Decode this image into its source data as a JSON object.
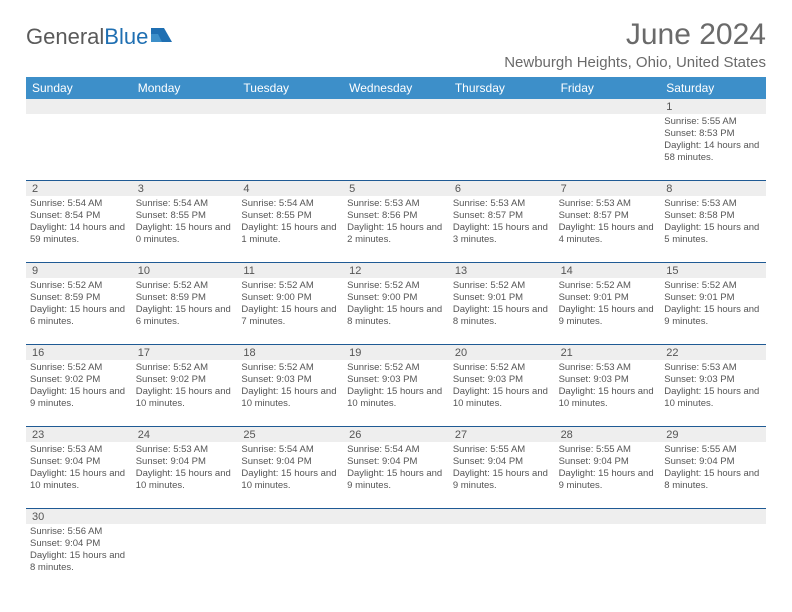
{
  "logo": {
    "text1": "General",
    "text2": "Blue"
  },
  "title": "June 2024",
  "location": "Newburgh Heights, Ohio, United States",
  "colors": {
    "header_bg": "#3d8fc9",
    "header_text": "#ffffff",
    "row_border": "#1f5a94",
    "daynum_bg": "#eeeeee",
    "text": "#555555",
    "logo_gray": "#5a5a5a",
    "logo_blue": "#1f6fb2"
  },
  "day_names": [
    "Sunday",
    "Monday",
    "Tuesday",
    "Wednesday",
    "Thursday",
    "Friday",
    "Saturday"
  ],
  "weeks": [
    {
      "nums": [
        "",
        "",
        "",
        "",
        "",
        "",
        "1"
      ],
      "cells": [
        null,
        null,
        null,
        null,
        null,
        null,
        {
          "sunrise": "5:55 AM",
          "sunset": "8:53 PM",
          "daylight": "14 hours and 58 minutes."
        }
      ]
    },
    {
      "nums": [
        "2",
        "3",
        "4",
        "5",
        "6",
        "7",
        "8"
      ],
      "cells": [
        {
          "sunrise": "5:54 AM",
          "sunset": "8:54 PM",
          "daylight": "14 hours and 59 minutes."
        },
        {
          "sunrise": "5:54 AM",
          "sunset": "8:55 PM",
          "daylight": "15 hours and 0 minutes."
        },
        {
          "sunrise": "5:54 AM",
          "sunset": "8:55 PM",
          "daylight": "15 hours and 1 minute."
        },
        {
          "sunrise": "5:53 AM",
          "sunset": "8:56 PM",
          "daylight": "15 hours and 2 minutes."
        },
        {
          "sunrise": "5:53 AM",
          "sunset": "8:57 PM",
          "daylight": "15 hours and 3 minutes."
        },
        {
          "sunrise": "5:53 AM",
          "sunset": "8:57 PM",
          "daylight": "15 hours and 4 minutes."
        },
        {
          "sunrise": "5:53 AM",
          "sunset": "8:58 PM",
          "daylight": "15 hours and 5 minutes."
        }
      ]
    },
    {
      "nums": [
        "9",
        "10",
        "11",
        "12",
        "13",
        "14",
        "15"
      ],
      "cells": [
        {
          "sunrise": "5:52 AM",
          "sunset": "8:59 PM",
          "daylight": "15 hours and 6 minutes."
        },
        {
          "sunrise": "5:52 AM",
          "sunset": "8:59 PM",
          "daylight": "15 hours and 6 minutes."
        },
        {
          "sunrise": "5:52 AM",
          "sunset": "9:00 PM",
          "daylight": "15 hours and 7 minutes."
        },
        {
          "sunrise": "5:52 AM",
          "sunset": "9:00 PM",
          "daylight": "15 hours and 8 minutes."
        },
        {
          "sunrise": "5:52 AM",
          "sunset": "9:01 PM",
          "daylight": "15 hours and 8 minutes."
        },
        {
          "sunrise": "5:52 AM",
          "sunset": "9:01 PM",
          "daylight": "15 hours and 9 minutes."
        },
        {
          "sunrise": "5:52 AM",
          "sunset": "9:01 PM",
          "daylight": "15 hours and 9 minutes."
        }
      ]
    },
    {
      "nums": [
        "16",
        "17",
        "18",
        "19",
        "20",
        "21",
        "22"
      ],
      "cells": [
        {
          "sunrise": "5:52 AM",
          "sunset": "9:02 PM",
          "daylight": "15 hours and 9 minutes."
        },
        {
          "sunrise": "5:52 AM",
          "sunset": "9:02 PM",
          "daylight": "15 hours and 10 minutes."
        },
        {
          "sunrise": "5:52 AM",
          "sunset": "9:03 PM",
          "daylight": "15 hours and 10 minutes."
        },
        {
          "sunrise": "5:52 AM",
          "sunset": "9:03 PM",
          "daylight": "15 hours and 10 minutes."
        },
        {
          "sunrise": "5:52 AM",
          "sunset": "9:03 PM",
          "daylight": "15 hours and 10 minutes."
        },
        {
          "sunrise": "5:53 AM",
          "sunset": "9:03 PM",
          "daylight": "15 hours and 10 minutes."
        },
        {
          "sunrise": "5:53 AM",
          "sunset": "9:03 PM",
          "daylight": "15 hours and 10 minutes."
        }
      ]
    },
    {
      "nums": [
        "23",
        "24",
        "25",
        "26",
        "27",
        "28",
        "29"
      ],
      "cells": [
        {
          "sunrise": "5:53 AM",
          "sunset": "9:04 PM",
          "daylight": "15 hours and 10 minutes."
        },
        {
          "sunrise": "5:53 AM",
          "sunset": "9:04 PM",
          "daylight": "15 hours and 10 minutes."
        },
        {
          "sunrise": "5:54 AM",
          "sunset": "9:04 PM",
          "daylight": "15 hours and 10 minutes."
        },
        {
          "sunrise": "5:54 AM",
          "sunset": "9:04 PM",
          "daylight": "15 hours and 9 minutes."
        },
        {
          "sunrise": "5:55 AM",
          "sunset": "9:04 PM",
          "daylight": "15 hours and 9 minutes."
        },
        {
          "sunrise": "5:55 AM",
          "sunset": "9:04 PM",
          "daylight": "15 hours and 9 minutes."
        },
        {
          "sunrise": "5:55 AM",
          "sunset": "9:04 PM",
          "daylight": "15 hours and 8 minutes."
        }
      ]
    },
    {
      "nums": [
        "30",
        "",
        "",
        "",
        "",
        "",
        ""
      ],
      "cells": [
        {
          "sunrise": "5:56 AM",
          "sunset": "9:04 PM",
          "daylight": "15 hours and 8 minutes."
        },
        null,
        null,
        null,
        null,
        null,
        null
      ]
    }
  ],
  "labels": {
    "sunrise": "Sunrise:",
    "sunset": "Sunset:",
    "daylight": "Daylight:"
  }
}
